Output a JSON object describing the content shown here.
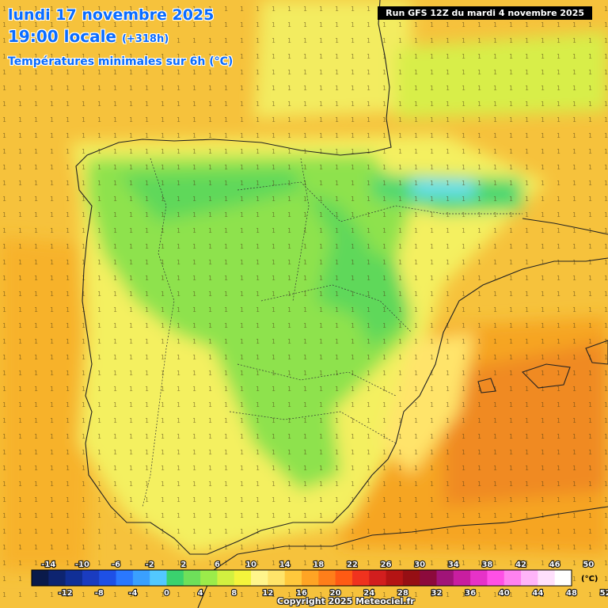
{
  "header": {
    "date": "lundi 17 novembre 2025",
    "time": "19:00 locale",
    "lead": "(+318h)",
    "subtitle": "Températures minimales sur 6h (°C)"
  },
  "run_label": "Run GFS 12Z du mardi 4 novembre 2025",
  "copyright": "Copyright 2025 Meteociel.fr",
  "legend": {
    "unit": "(°C)",
    "top_labels": [
      "-14",
      "-10",
      "-6",
      "-2",
      "2",
      "6",
      "10",
      "14",
      "18",
      "22",
      "26",
      "30",
      "34",
      "38",
      "42",
      "46",
      "50"
    ],
    "bottom_labels": [
      "-12",
      "-8",
      "-4",
      "0",
      "4",
      "8",
      "12",
      "16",
      "20",
      "24",
      "28",
      "32",
      "36",
      "40",
      "44",
      "48",
      "52"
    ],
    "colors": [
      "#0a1a4a",
      "#0d2470",
      "#102f96",
      "#1a3cc0",
      "#1e50e6",
      "#2a78ff",
      "#3aa0ff",
      "#52c8ff",
      "#3ad26e",
      "#6ee05a",
      "#9bec4a",
      "#d2f040",
      "#f4f43c",
      "#fff58c",
      "#ffe46a",
      "#ffc83c",
      "#ffa424",
      "#ff7e1a",
      "#ff5a14",
      "#f0321e",
      "#d21e1e",
      "#b41414",
      "#960f14",
      "#8c0a3c",
      "#a01478",
      "#c81ea0",
      "#e632c8",
      "#ff50e6",
      "#ff82f0",
      "#ffb4f8",
      "#ffe0fc",
      "#ffffff"
    ]
  },
  "colors": {
    "sea": "#f7c43a",
    "title": "#0a6cff"
  }
}
